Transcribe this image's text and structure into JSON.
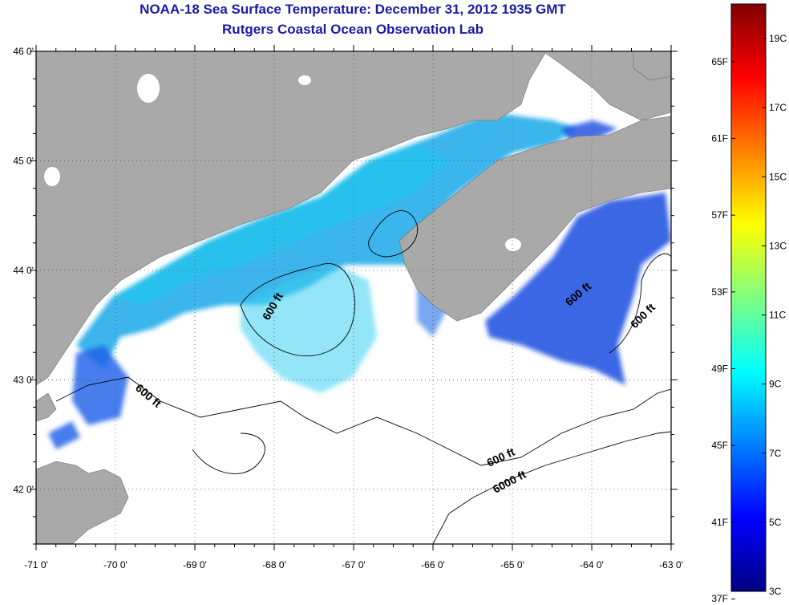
{
  "title": "NOAA-18 Sea Surface Temperature:  December 31, 2012 1935 GMT",
  "subtitle": "Rutgers Coastal Ocean Observation Lab",
  "lat_labels": [
    "46 0'",
    "45 0'",
    "44 0'",
    "43 0'",
    "42 0'"
  ],
  "lat_values": [
    46,
    45,
    44,
    43,
    42
  ],
  "lon_labels": [
    "-71 0'",
    "-70 0'",
    "-69 0'",
    "-68 0'",
    "-67 0'",
    "-66 0'",
    "-65 0'",
    "-64 0'",
    "-63 0'"
  ],
  "lon_values": [
    -71,
    -70,
    -69,
    -68,
    -67,
    -66,
    -65,
    -64,
    -63
  ],
  "lat_range": [
    41.5,
    46.0
  ],
  "lon_range": [
    -71.0,
    -63.0
  ],
  "contour_labels": [
    "600 ft",
    "600 ft",
    "600 ft",
    "600 ft",
    "600 ft",
    "6000 ft"
  ],
  "colorbar": {
    "min_c": 3,
    "max_c": 20,
    "celsius_labels": [
      "19C",
      "17C",
      "15C",
      "13C",
      "11C",
      "9C",
      "7C",
      "5C",
      "3C"
    ],
    "fahrenheit_labels": [
      "65F",
      "61F",
      "57F",
      "53F",
      "49F",
      "45F",
      "41F",
      "37F"
    ],
    "colors": [
      "#000080",
      "#0000ff",
      "#0080ff",
      "#00ffff",
      "#80ff80",
      "#ffff00",
      "#ff8000",
      "#ff0000",
      "#800000"
    ]
  },
  "colors": {
    "land": "#a9a9a9",
    "ocean_no_data": "#ffffff",
    "title": "#1a1aa8"
  }
}
